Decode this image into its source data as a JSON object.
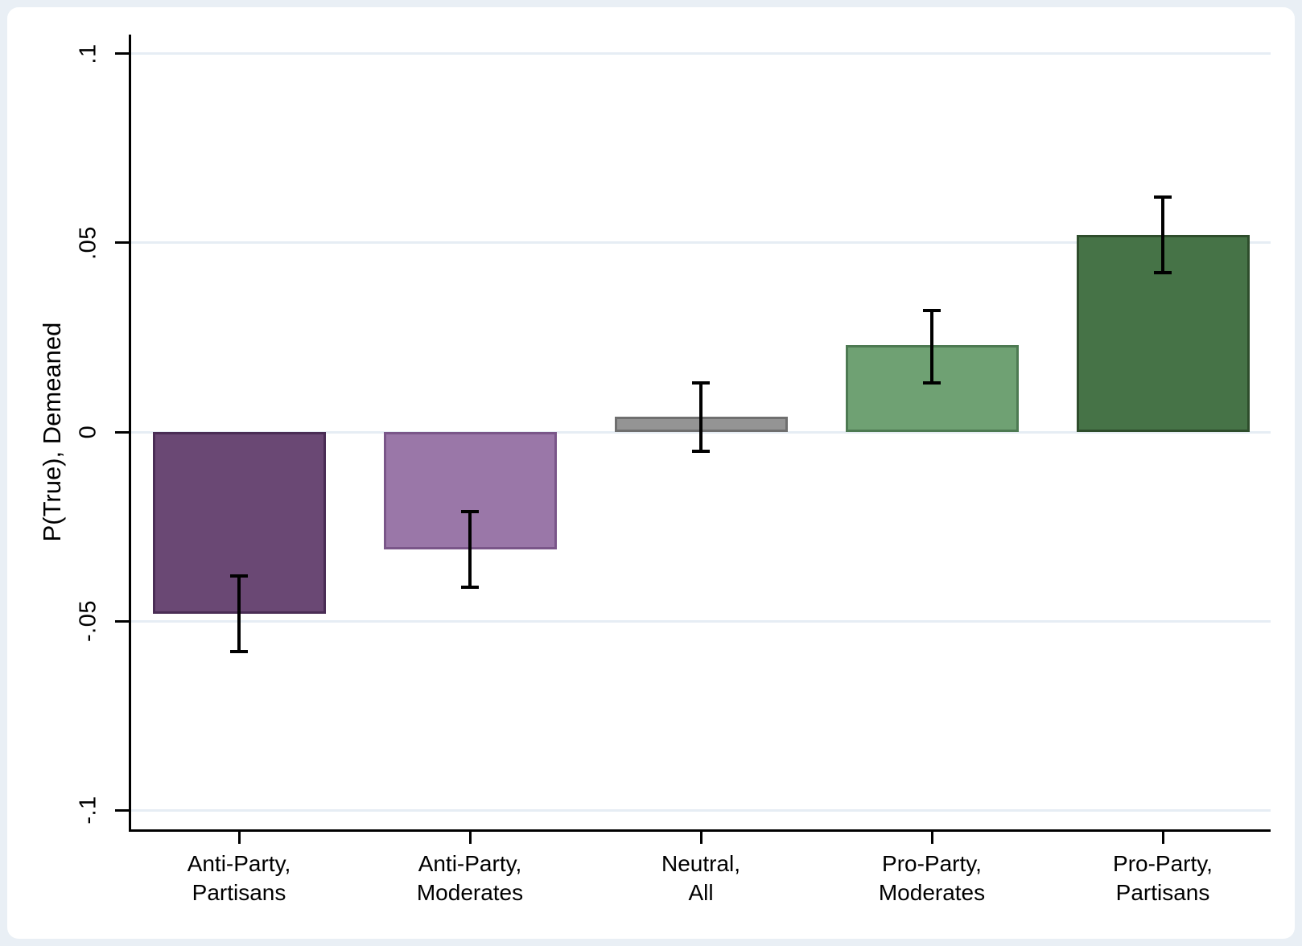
{
  "colors": {
    "frame_background": "#e9eff5",
    "plot_background": "#ffffff",
    "gridline": "#e6edf4",
    "axis": "#000000",
    "error_bar": "#000000"
  },
  "chart_data": {
    "type": "bar",
    "title": "",
    "xlabel": "",
    "ylabel": "P(True), Demeaned",
    "categories": [
      "Anti-Party,\nPartisans",
      "Anti-Party,\nModerates",
      "Neutral,\nAll",
      "Pro-Party,\nModerates",
      "Pro-Party,\nPartisans"
    ],
    "values": [
      -0.048,
      -0.031,
      0.004,
      0.023,
      0.052
    ],
    "ci_low": [
      -0.058,
      -0.041,
      -0.005,
      0.013,
      0.042
    ],
    "ci_high": [
      -0.038,
      -0.021,
      0.013,
      0.032,
      0.062
    ],
    "bar_colors": [
      "#6a4874",
      "#9a77a8",
      "#949494",
      "#6fa173",
      "#467347"
    ],
    "bar_border_colors": [
      "#4a2d55",
      "#7a5689",
      "#6f6f6f",
      "#4d7a52",
      "#2e4d2c"
    ],
    "yticks": [
      {
        "label": ".1",
        "value": 0.1
      },
      {
        "label": ".05",
        "value": 0.05
      },
      {
        "label": "0",
        "value": 0
      },
      {
        "label": "-.05",
        "value": -0.05
      },
      {
        "label": "-.1",
        "value": -0.1
      }
    ],
    "ylim": [
      -0.105,
      0.105
    ],
    "grid": true,
    "legend": false,
    "error_bars": true
  }
}
